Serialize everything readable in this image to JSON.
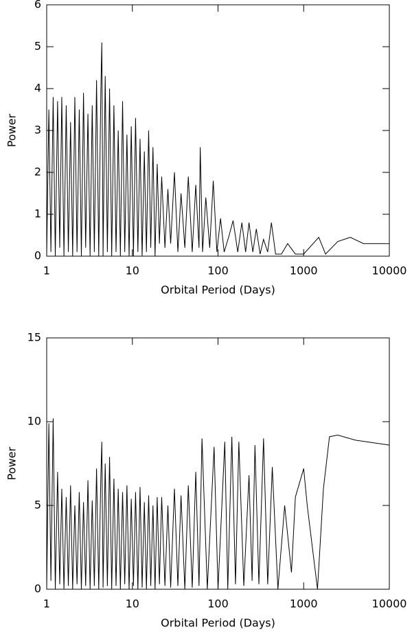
{
  "chart_data": [
    {
      "type": "line",
      "xlabel": "Orbital Period (Days)",
      "ylabel": "Power",
      "xscale": "log",
      "xlim": [
        1,
        10000
      ],
      "xticks": [
        1,
        10,
        100,
        1000,
        10000
      ],
      "ylim": [
        0,
        6
      ],
      "yticks": [
        0,
        1,
        2,
        3,
        4,
        5,
        6
      ],
      "color": "#000000",
      "x": [
        1,
        1.06,
        1.12,
        1.19,
        1.26,
        1.34,
        1.42,
        1.5,
        1.59,
        1.69,
        1.79,
        1.9,
        2.01,
        2.13,
        2.26,
        2.4,
        2.54,
        2.69,
        2.85,
        3.03,
        3.21,
        3.4,
        3.6,
        3.82,
        4.05,
        4.29,
        4.4,
        4.55,
        4.82,
        5.11,
        5.42,
        5.74,
        6.09,
        6.45,
        6.84,
        7.25,
        7.69,
        8.15,
        8.64,
        9.16,
        9.71,
        10.3,
        10.9,
        11.6,
        12.3,
        13,
        13.8,
        14.6,
        15.5,
        16.4,
        17.4,
        18.4,
        19.5,
        20.7,
        22,
        24,
        26,
        28,
        31,
        34,
        37,
        41,
        45,
        50,
        55,
        60,
        62,
        66,
        72,
        80,
        88,
        97,
        107,
        118,
        135,
        150,
        170,
        190,
        210,
        230,
        255,
        280,
        310,
        340,
        380,
        420,
        470,
        550,
        650,
        800,
        1000,
        1500,
        1800,
        2500,
        3500,
        5000,
        10000
      ],
      "values": [
        0,
        3.5,
        0.1,
        3.8,
        0,
        3.7,
        0.2,
        3.8,
        0,
        3.6,
        0.1,
        3.2,
        0,
        3.8,
        0.1,
        3.5,
        0,
        3.9,
        0.2,
        3.4,
        0,
        3.6,
        0.1,
        4.2,
        0,
        4.0,
        5.1,
        0,
        4.3,
        0.1,
        4.0,
        0,
        3.6,
        0.1,
        3.0,
        0,
        3.7,
        0.1,
        2.9,
        0,
        3.1,
        0,
        3.3,
        0.1,
        2.8,
        0,
        2.5,
        0.1,
        3.0,
        0.2,
        2.6,
        0,
        2.2,
        0.3,
        1.9,
        0.2,
        1.6,
        0.3,
        2.0,
        0.1,
        1.5,
        0.2,
        1.9,
        0.1,
        1.7,
        0.2,
        2.6,
        0.1,
        1.4,
        0.2,
        1.8,
        0.1,
        0.9,
        0.1,
        0.5,
        0.85,
        0.1,
        0.8,
        0.1,
        0.8,
        0.1,
        0.65,
        0.05,
        0.4,
        0.1,
        0.8,
        0.05,
        0.05,
        0.3,
        0.05,
        0.05,
        0.45,
        0.05,
        0.35,
        0.45,
        0.3,
        0.3
      ]
    },
    {
      "type": "line",
      "xlabel": "Orbital Period (Days)",
      "ylabel": "Power",
      "xscale": "log",
      "xlim": [
        1,
        10000
      ],
      "xticks": [
        1,
        10,
        100,
        1000,
        10000
      ],
      "ylim": [
        0,
        15
      ],
      "yticks": [
        0,
        5,
        10,
        15
      ],
      "color": "#000000",
      "x": [
        1,
        1.06,
        1.12,
        1.19,
        1.26,
        1.34,
        1.42,
        1.5,
        1.59,
        1.69,
        1.79,
        1.9,
        2.01,
        2.13,
        2.26,
        2.4,
        2.54,
        2.69,
        2.85,
        3.03,
        3.21,
        3.4,
        3.6,
        3.82,
        4.05,
        4.29,
        4.4,
        4.55,
        4.82,
        5.11,
        5.42,
        5.74,
        6.09,
        6.45,
        6.84,
        7.25,
        7.69,
        8.15,
        8.64,
        9.16,
        9.71,
        10.3,
        10.9,
        11.6,
        12.3,
        13,
        13.8,
        14.6,
        15.5,
        16.4,
        17.4,
        18.4,
        19.5,
        20.7,
        22,
        24,
        26,
        28,
        31,
        34,
        37,
        41,
        45,
        50,
        55,
        60,
        65,
        75,
        90,
        100,
        120,
        130,
        145,
        160,
        175,
        200,
        230,
        250,
        270,
        300,
        340,
        380,
        430,
        500,
        600,
        720,
        800,
        1000,
        1100,
        1450,
        1700,
        2000,
        2500,
        4000,
        10000
      ],
      "values": [
        0,
        9.9,
        0.5,
        10.2,
        0,
        7,
        0.3,
        6,
        0,
        5.5,
        0.2,
        6.2,
        0,
        5,
        0.3,
        5.8,
        0,
        5.2,
        0.2,
        6.5,
        0,
        5.3,
        0.2,
        7.2,
        0,
        6.8,
        8.8,
        0.1,
        7.5,
        0.2,
        7.9,
        0,
        6.6,
        0.2,
        6.0,
        0,
        5.8,
        0.3,
        6.2,
        0,
        5.4,
        0.2,
        5.8,
        0,
        6.1,
        0.1,
        5.2,
        0,
        5.6,
        0.2,
        5.0,
        0,
        5.5,
        0.3,
        5.5,
        0.2,
        5.0,
        0.1,
        6.0,
        0.2,
        5.6,
        0,
        6.2,
        0.1,
        7.0,
        0.2,
        9,
        0,
        8.5,
        0,
        8.8,
        0,
        9.1,
        0.3,
        8.8,
        0.2,
        6.8,
        0.5,
        8.6,
        0.3,
        9,
        0.3,
        7.3,
        0,
        5,
        1,
        5.5,
        7.2,
        5,
        0,
        6,
        9.1,
        9.2,
        8.9,
        8.6
      ]
    }
  ]
}
